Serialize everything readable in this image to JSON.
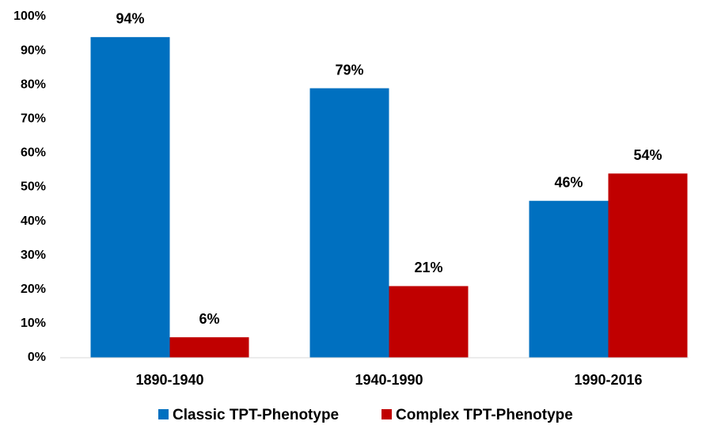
{
  "chart_data": {
    "type": "bar",
    "categories": [
      "1890-1940",
      "1940-1990",
      "1990-2016"
    ],
    "series": [
      {
        "name": "Classic TPT-Phenotype",
        "color": "#0070c0",
        "values": [
          94,
          79,
          46
        ],
        "value_labels": [
          "94%",
          "79%",
          "46%"
        ]
      },
      {
        "name": "Complex TPT-Phenotype",
        "color": "#c00000",
        "values": [
          6,
          21,
          54
        ],
        "value_labels": [
          "6%",
          "21%",
          "54%"
        ]
      }
    ],
    "ylim": [
      0,
      100
    ],
    "yticks": [
      {
        "value": 0,
        "label": "0%"
      },
      {
        "value": 10,
        "label": "10%"
      },
      {
        "value": 20,
        "label": "20%"
      },
      {
        "value": 30,
        "label": "30%"
      },
      {
        "value": 40,
        "label": "40%"
      },
      {
        "value": 50,
        "label": "50%"
      },
      {
        "value": 60,
        "label": "60%"
      },
      {
        "value": 70,
        "label": "70%"
      },
      {
        "value": 80,
        "label": "80%"
      },
      {
        "value": 90,
        "label": "90%"
      },
      {
        "value": 100,
        "label": "100%"
      }
    ],
    "grid": false,
    "legend": "bottom"
  }
}
